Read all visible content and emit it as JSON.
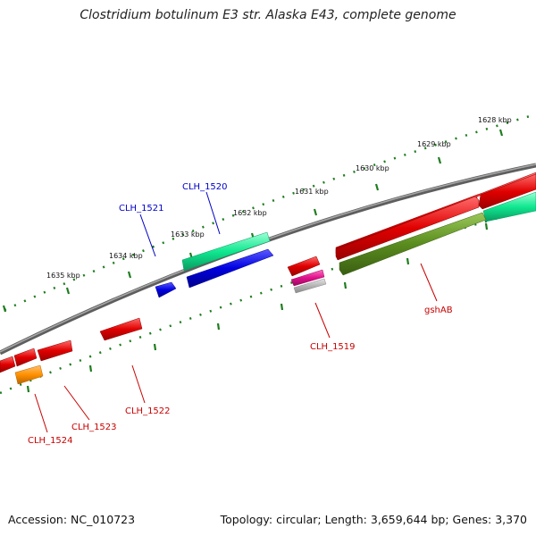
{
  "title": "Clostridium botulinum E3 str. Alaska E43, complete genome",
  "footer": {
    "accession": "Accession: NC_010723",
    "summary": "Topology: circular; Length: 3,659,644 bp; Genes: 3,370"
  },
  "scale_labels": [
    "1628 kbp",
    "1629 kbp",
    "1630 kbp",
    "1631 kbp",
    "1632 kbp",
    "1633 kbp",
    "1634 kbp",
    "1635 kbp"
  ],
  "gene_labels": {
    "forward": [
      "CLH_1520",
      "CLH_1521"
    ],
    "reverse": [
      "CLH_1519",
      "gshAB",
      "CLH_1522",
      "CLH_1523",
      "CLH_1524"
    ]
  },
  "colors": {
    "backbone": "#7a7a7a",
    "forward_label": "#0000c8",
    "reverse_label": "#c80000",
    "cds_red": "#e00000",
    "cds_blue": "#0000e0",
    "cds_green": "#10e890",
    "cds_olive": "#5a8c1e",
    "cds_orange": "#ff9000",
    "cds_magenta": "#e0108c",
    "cds_grey": "#b4b4b4",
    "tick": "#1e7d1e"
  }
}
